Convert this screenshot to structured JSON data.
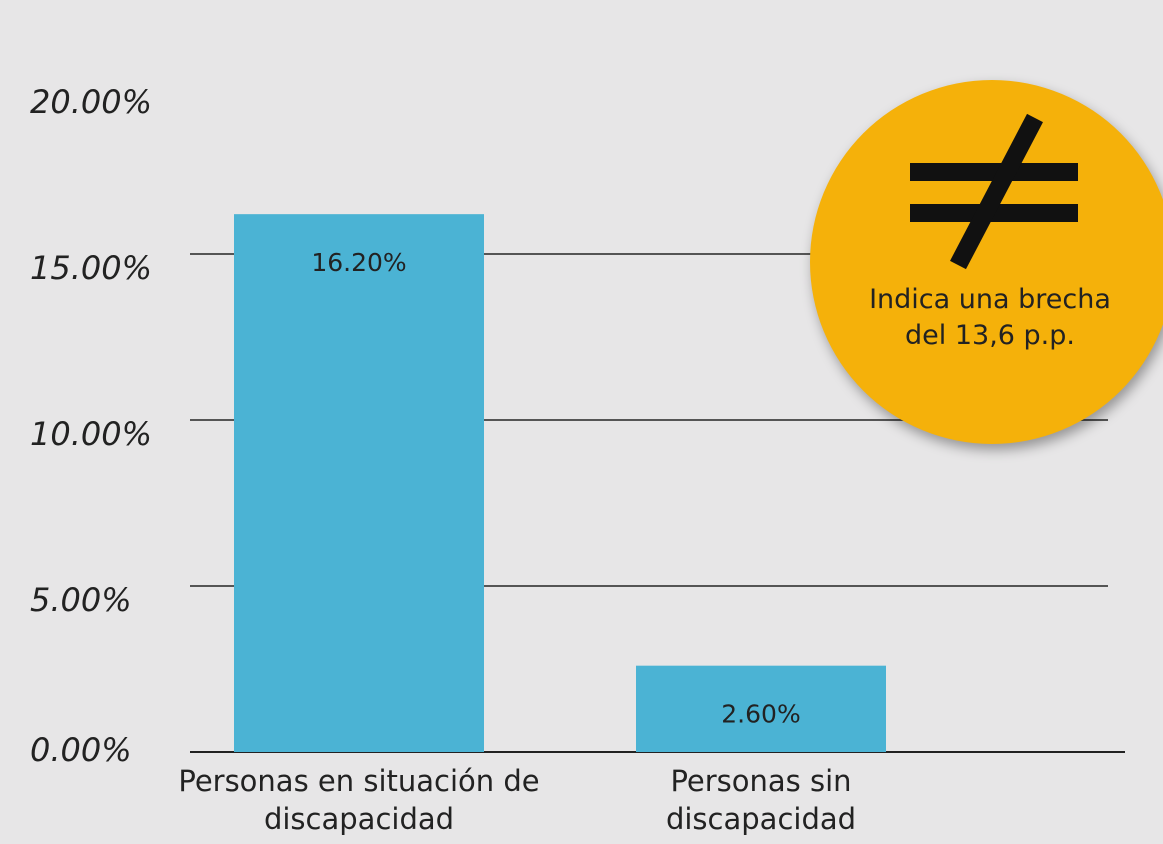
{
  "chart_data": {
    "type": "bar",
    "categories": [
      "Personas en situación de discapacidad",
      "Personas sin discapacidad"
    ],
    "values": [
      16.2,
      2.6
    ],
    "value_labels": [
      "16.20%",
      "2.60%"
    ],
    "color": "#4bb3d4",
    "ylim": [
      0,
      20
    ],
    "yticks": [
      {
        "value": 0,
        "label": "0.00%"
      },
      {
        "value": 5,
        "label": "5.00%"
      },
      {
        "value": 10,
        "label": "10.00%"
      },
      {
        "value": 15,
        "label": "15.00%"
      },
      {
        "value": 20,
        "label": "20.00%"
      }
    ],
    "grid": true,
    "annotation": "Indica una brecha del 13,6 p.p."
  }
}
